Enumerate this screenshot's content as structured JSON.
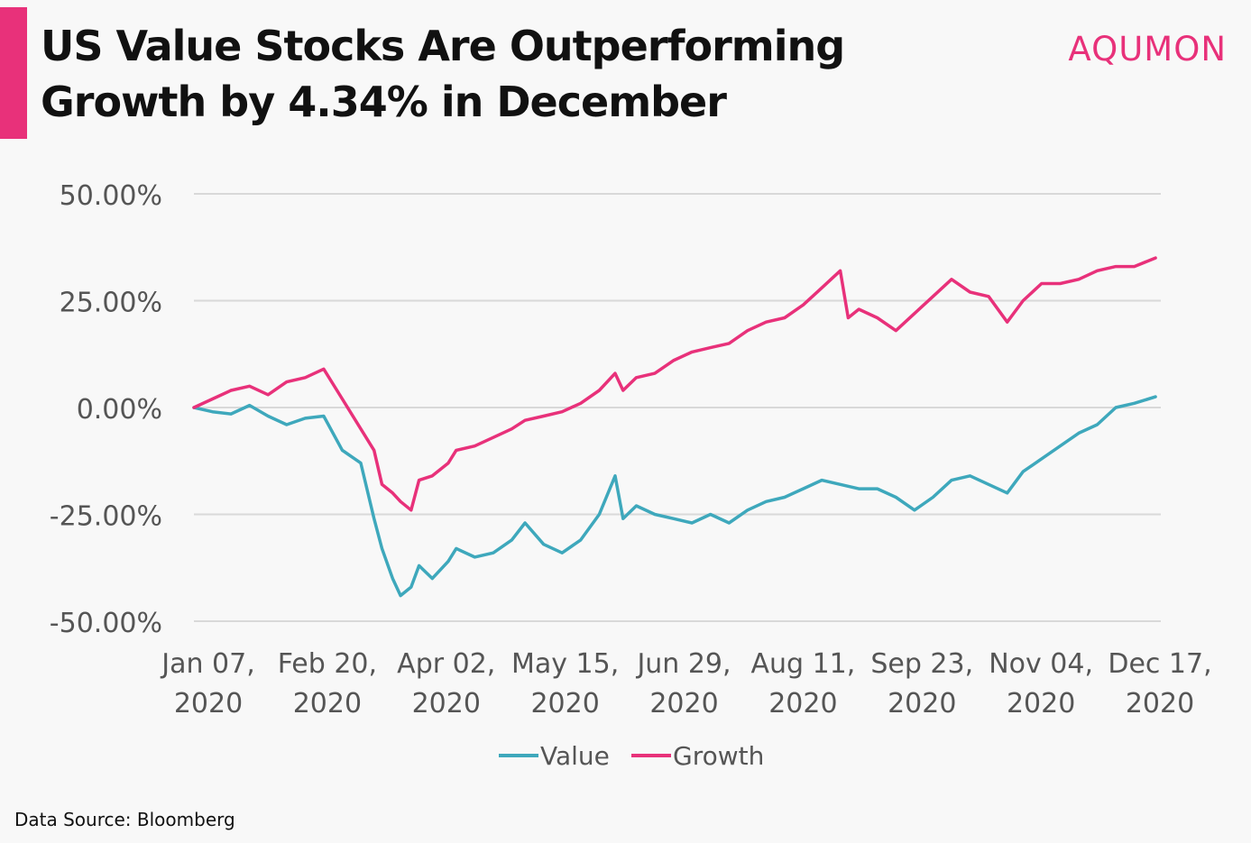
{
  "header": {
    "title_line1": "US Value Stocks Are Outperforming",
    "title_line2": "Growth by 4.34% in December",
    "brand": "AQUMON"
  },
  "footer": {
    "source": "Data Source: Bloomberg"
  },
  "colors": {
    "accent": "#e8317a",
    "value_series": "#3ea8bc",
    "growth_series": "#e8317a",
    "grid": "#d9d9d9",
    "text": "#555555"
  },
  "chart_data": {
    "type": "line",
    "title": "US Value Stocks Are Outperforming Growth by 4.34% in December",
    "x_ticks": [
      [
        "Jan 07,",
        "2020"
      ],
      [
        "Feb 20,",
        "2020"
      ],
      [
        "Apr 02,",
        "2020"
      ],
      [
        "May 15,",
        "2020"
      ],
      [
        "Jun 29,",
        "2020"
      ],
      [
        "Aug 11,",
        "2020"
      ],
      [
        "Sep 23,",
        "2020"
      ],
      [
        "Nov 04,",
        "2020"
      ],
      [
        "Dec 17,",
        "2020"
      ]
    ],
    "y_ticks": [
      "50.00%",
      "25.00%",
      "0.00%",
      "-25.00%",
      "-50.00%"
    ],
    "ylim": [
      -50,
      50
    ],
    "y_gridlines": [
      50,
      25,
      0,
      -25,
      -50
    ],
    "legend_position": "bottom",
    "series": [
      {
        "name": "Value",
        "color": "#3ea8bc",
        "points": [
          [
            "2020-01-01",
            0
          ],
          [
            "2020-01-08",
            -1
          ],
          [
            "2020-01-15",
            -1.5
          ],
          [
            "2020-01-22",
            0.5
          ],
          [
            "2020-01-29",
            -2
          ],
          [
            "2020-02-05",
            -4
          ],
          [
            "2020-02-12",
            -2.5
          ],
          [
            "2020-02-19",
            -2
          ],
          [
            "2020-02-26",
            -10
          ],
          [
            "2020-03-04",
            -13
          ],
          [
            "2020-03-09",
            -26
          ],
          [
            "2020-03-12",
            -33
          ],
          [
            "2020-03-16",
            -40
          ],
          [
            "2020-03-19",
            -44
          ],
          [
            "2020-03-23",
            -42
          ],
          [
            "2020-03-26",
            -37
          ],
          [
            "2020-03-31",
            -40
          ],
          [
            "2020-04-06",
            -36
          ],
          [
            "2020-04-09",
            -33
          ],
          [
            "2020-04-16",
            -35
          ],
          [
            "2020-04-23",
            -34
          ],
          [
            "2020-04-30",
            -31
          ],
          [
            "2020-05-05",
            -27
          ],
          [
            "2020-05-12",
            -32
          ],
          [
            "2020-05-19",
            -34
          ],
          [
            "2020-05-26",
            -31
          ],
          [
            "2020-06-02",
            -25
          ],
          [
            "2020-06-08",
            -16
          ],
          [
            "2020-06-11",
            -26
          ],
          [
            "2020-06-16",
            -23
          ],
          [
            "2020-06-23",
            -25
          ],
          [
            "2020-06-30",
            -26
          ],
          [
            "2020-07-07",
            -27
          ],
          [
            "2020-07-14",
            -25
          ],
          [
            "2020-07-21",
            -27
          ],
          [
            "2020-07-28",
            -24
          ],
          [
            "2020-08-04",
            -22
          ],
          [
            "2020-08-11",
            -21
          ],
          [
            "2020-08-18",
            -19
          ],
          [
            "2020-08-25",
            -17
          ],
          [
            "2020-09-01",
            -18
          ],
          [
            "2020-09-08",
            -19
          ],
          [
            "2020-09-15",
            -19
          ],
          [
            "2020-09-22",
            -21
          ],
          [
            "2020-09-29",
            -24
          ],
          [
            "2020-10-06",
            -21
          ],
          [
            "2020-10-13",
            -17
          ],
          [
            "2020-10-20",
            -16
          ],
          [
            "2020-10-27",
            -18
          ],
          [
            "2020-11-03",
            -20
          ],
          [
            "2020-11-09",
            -15
          ],
          [
            "2020-11-16",
            -12
          ],
          [
            "2020-11-23",
            -9
          ],
          [
            "2020-11-30",
            -6
          ],
          [
            "2020-12-07",
            -4
          ],
          [
            "2020-12-14",
            0
          ],
          [
            "2020-12-21",
            1
          ],
          [
            "2020-12-29",
            2.5
          ]
        ]
      },
      {
        "name": "Growth",
        "color": "#e8317a",
        "points": [
          [
            "2020-01-01",
            0
          ],
          [
            "2020-01-08",
            2
          ],
          [
            "2020-01-15",
            4
          ],
          [
            "2020-01-22",
            5
          ],
          [
            "2020-01-29",
            3
          ],
          [
            "2020-02-05",
            6
          ],
          [
            "2020-02-12",
            7
          ],
          [
            "2020-02-19",
            9
          ],
          [
            "2020-02-26",
            2
          ],
          [
            "2020-03-04",
            -5
          ],
          [
            "2020-03-09",
            -10
          ],
          [
            "2020-03-12",
            -18
          ],
          [
            "2020-03-16",
            -20
          ],
          [
            "2020-03-19",
            -22
          ],
          [
            "2020-03-23",
            -24
          ],
          [
            "2020-03-26",
            -17
          ],
          [
            "2020-03-31",
            -16
          ],
          [
            "2020-04-06",
            -13
          ],
          [
            "2020-04-09",
            -10
          ],
          [
            "2020-04-16",
            -9
          ],
          [
            "2020-04-23",
            -7
          ],
          [
            "2020-04-30",
            -5
          ],
          [
            "2020-05-05",
            -3
          ],
          [
            "2020-05-12",
            -2
          ],
          [
            "2020-05-19",
            -1
          ],
          [
            "2020-05-26",
            1
          ],
          [
            "2020-06-02",
            4
          ],
          [
            "2020-06-08",
            8
          ],
          [
            "2020-06-11",
            4
          ],
          [
            "2020-06-16",
            7
          ],
          [
            "2020-06-23",
            8
          ],
          [
            "2020-06-30",
            11
          ],
          [
            "2020-07-07",
            13
          ],
          [
            "2020-07-14",
            14
          ],
          [
            "2020-07-21",
            15
          ],
          [
            "2020-07-28",
            18
          ],
          [
            "2020-08-04",
            20
          ],
          [
            "2020-08-11",
            21
          ],
          [
            "2020-08-18",
            24
          ],
          [
            "2020-08-25",
            28
          ],
          [
            "2020-09-01",
            32
          ],
          [
            "2020-09-04",
            21
          ],
          [
            "2020-09-08",
            23
          ],
          [
            "2020-09-15",
            21
          ],
          [
            "2020-09-22",
            18
          ],
          [
            "2020-09-29",
            22
          ],
          [
            "2020-10-06",
            26
          ],
          [
            "2020-10-13",
            30
          ],
          [
            "2020-10-20",
            27
          ],
          [
            "2020-10-27",
            26
          ],
          [
            "2020-11-03",
            20
          ],
          [
            "2020-11-09",
            25
          ],
          [
            "2020-11-16",
            29
          ],
          [
            "2020-11-23",
            29
          ],
          [
            "2020-11-30",
            30
          ],
          [
            "2020-12-07",
            32
          ],
          [
            "2020-12-14",
            33
          ],
          [
            "2020-12-21",
            33
          ],
          [
            "2020-12-29",
            35
          ]
        ]
      }
    ]
  }
}
